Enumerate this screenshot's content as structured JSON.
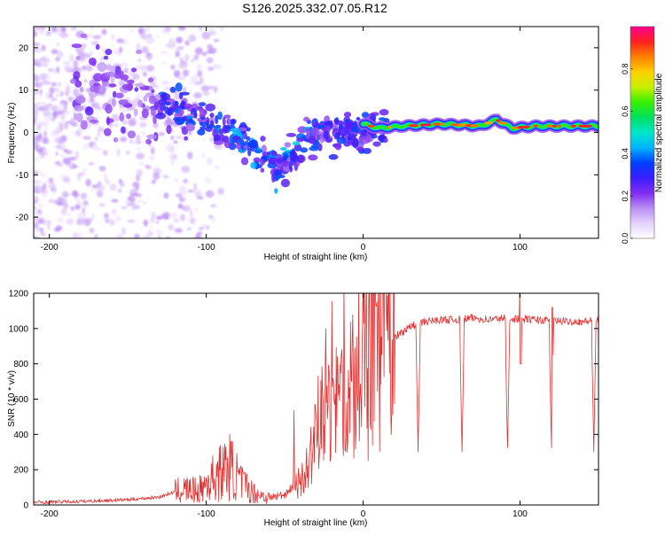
{
  "title": "S126.2025.332.07.05.R12",
  "chart_data": [
    {
      "type": "heatmap",
      "name": "spectrogram",
      "xlabel": "Height of straight line (km)",
      "ylabel": "Frequency (Hz)",
      "xlim": [
        -210,
        150
      ],
      "ylim": [
        -25,
        25
      ],
      "xticks": [
        -200,
        -100,
        0,
        100
      ],
      "yticks": [
        -20,
        -10,
        0,
        10,
        20
      ],
      "colorbar": {
        "label": "Normalized spectral amplitude",
        "range": [
          0,
          1
        ],
        "ticks": [
          0.0,
          0.2,
          0.4,
          0.6,
          0.8
        ],
        "colormap": [
          "#ffffff",
          "#e4d2fb",
          "#b98cf4",
          "#7f2cf0",
          "#3a1cff",
          "#0040ff",
          "#00b4ff",
          "#00e6c8",
          "#00e060",
          "#36f000",
          "#c8f000",
          "#ffd000",
          "#ff8000",
          "#ff2020",
          "#ff0090"
        ]
      },
      "ridge": [
        {
          "x": 0,
          "f": 2
        },
        {
          "x": 10,
          "f": 1
        },
        {
          "x": 25,
          "f": 1.5
        },
        {
          "x": 50,
          "f": 2
        },
        {
          "x": 75,
          "f": 1.5
        },
        {
          "x": 85,
          "f": 3
        },
        {
          "x": 95,
          "f": 1
        },
        {
          "x": 110,
          "f": 1.5
        },
        {
          "x": 150,
          "f": 1.5
        }
      ],
      "scatter_trend": [
        {
          "x": -180,
          "f": 12
        },
        {
          "x": -130,
          "f": 6
        },
        {
          "x": -100,
          "f": 3
        },
        {
          "x": -75,
          "f": -2
        },
        {
          "x": -55,
          "f": -9
        },
        {
          "x": -45,
          "f": -5
        },
        {
          "x": -35,
          "f": -1
        },
        {
          "x": -20,
          "f": 0
        }
      ]
    },
    {
      "type": "line",
      "name": "snr",
      "xlabel": "Height of straight line (km)",
      "ylabel": "SNR (10 * v/v)",
      "xlim": [
        -210,
        150
      ],
      "ylim": [
        0,
        1200
      ],
      "xticks": [
        -200,
        -100,
        0,
        100
      ],
      "yticks": [
        0,
        200,
        400,
        600,
        800,
        1000,
        1200
      ],
      "color": "#e53030",
      "series": [
        {
          "name": "SNR",
          "x": [
            -210,
            -180,
            -150,
            -130,
            -115,
            -105,
            -95,
            -85,
            -78,
            -70,
            -60,
            -50,
            -40,
            -35,
            -30,
            -25,
            -20,
            -15,
            -10,
            -5,
            0,
            5,
            10,
            15,
            20,
            25,
            30,
            40,
            50,
            60,
            70,
            80,
            90,
            100,
            110,
            120,
            130,
            140,
            150
          ],
          "y": [
            15,
            20,
            30,
            45,
            90,
            80,
            160,
            220,
            130,
            70,
            40,
            60,
            150,
            250,
            400,
            560,
            620,
            620,
            600,
            650,
            780,
            850,
            900,
            930,
            950,
            980,
            1010,
            1040,
            1050,
            1050,
            1060,
            1050,
            1060,
            1055,
            1050,
            1045,
            1040,
            1040,
            1045
          ]
        }
      ],
      "dropouts": [
        35,
        63,
        92,
        120,
        147
      ]
    }
  ]
}
